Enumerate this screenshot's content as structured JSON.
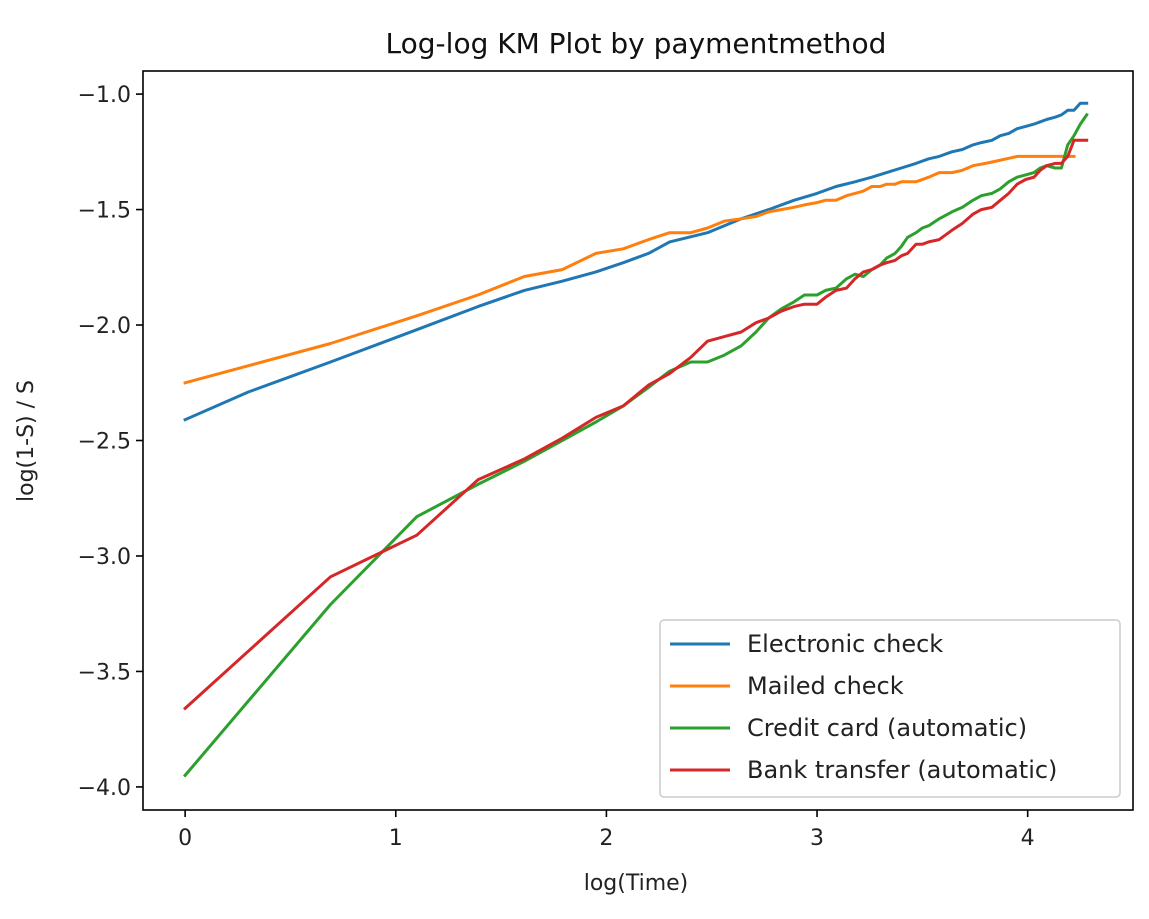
{
  "chart_data": {
    "type": "line",
    "title": "Log-log KM Plot by paymentmethod",
    "xlabel": "log(Time)",
    "ylabel": "log(1-S) / S",
    "xlim": [
      -0.2,
      4.5
    ],
    "ylim": [
      -4.1,
      -0.9
    ],
    "xticks": [
      0,
      1,
      2,
      3,
      4
    ],
    "xtick_labels": [
      "0",
      "1",
      "2",
      "3",
      "4"
    ],
    "yticks": [
      -1.0,
      -1.5,
      -2.0,
      -2.5,
      -3.0,
      -3.5,
      -4.0
    ],
    "ytick_labels": [
      "−1.0",
      "−1.5",
      "−2.0",
      "−2.5",
      "−3.0",
      "−3.5",
      "−4.0"
    ],
    "grid": false,
    "legend_position": "lower-right",
    "series": [
      {
        "name": "Electronic check",
        "color": "#1f77b4",
        "x": [
          0,
          0.3,
          0.69,
          1.1,
          1.39,
          1.61,
          1.79,
          1.95,
          2.08,
          2.2,
          2.3,
          2.48,
          2.64,
          2.77,
          2.89,
          3.0,
          3.09,
          3.18,
          3.26,
          3.33,
          3.4,
          3.47,
          3.53,
          3.58,
          3.64,
          3.69,
          3.74,
          3.78,
          3.83,
          3.87,
          3.91,
          3.95,
          3.99,
          4.03,
          4.06,
          4.09,
          4.13,
          4.16,
          4.19,
          4.22,
          4.25,
          4.28
        ],
        "y": [
          -2.41,
          -2.29,
          -2.16,
          -2.02,
          -1.92,
          -1.85,
          -1.81,
          -1.77,
          -1.73,
          -1.69,
          -1.64,
          -1.6,
          -1.54,
          -1.5,
          -1.46,
          -1.43,
          -1.4,
          -1.38,
          -1.36,
          -1.34,
          -1.32,
          -1.3,
          -1.28,
          -1.27,
          -1.25,
          -1.24,
          -1.22,
          -1.21,
          -1.2,
          -1.18,
          -1.17,
          -1.15,
          -1.14,
          -1.13,
          -1.12,
          -1.11,
          -1.1,
          -1.09,
          -1.07,
          -1.07,
          -1.04,
          -1.04
        ]
      },
      {
        "name": "Mailed check",
        "color": "#ff7f0e",
        "x": [
          0,
          0.69,
          1.1,
          1.39,
          1.61,
          1.79,
          1.95,
          2.08,
          2.2,
          2.3,
          2.4,
          2.48,
          2.56,
          2.64,
          2.71,
          2.77,
          2.83,
          2.89,
          2.94,
          3.0,
          3.04,
          3.09,
          3.14,
          3.18,
          3.22,
          3.26,
          3.3,
          3.33,
          3.37,
          3.4,
          3.47,
          3.53,
          3.58,
          3.64,
          3.69,
          3.74,
          3.8,
          3.85,
          3.9,
          3.95,
          4.0,
          4.06,
          4.13,
          4.2,
          4.22
        ],
        "y": [
          -2.25,
          -2.08,
          -1.96,
          -1.87,
          -1.79,
          -1.76,
          -1.69,
          -1.67,
          -1.63,
          -1.6,
          -1.6,
          -1.58,
          -1.55,
          -1.54,
          -1.53,
          -1.51,
          -1.5,
          -1.49,
          -1.48,
          -1.47,
          -1.46,
          -1.46,
          -1.44,
          -1.43,
          -1.42,
          -1.4,
          -1.4,
          -1.39,
          -1.39,
          -1.38,
          -1.38,
          -1.36,
          -1.34,
          -1.34,
          -1.33,
          -1.31,
          -1.3,
          -1.29,
          -1.28,
          -1.27,
          -1.27,
          -1.27,
          -1.27,
          -1.27,
          -1.27
        ]
      },
      {
        "name": "Credit card (automatic)",
        "color": "#2ca02c",
        "x": [
          0,
          0.69,
          1.1,
          1.39,
          1.61,
          1.79,
          1.95,
          2.08,
          2.2,
          2.3,
          2.4,
          2.48,
          2.56,
          2.64,
          2.71,
          2.77,
          2.83,
          2.89,
          2.94,
          3.0,
          3.04,
          3.09,
          3.14,
          3.18,
          3.22,
          3.26,
          3.3,
          3.33,
          3.37,
          3.4,
          3.43,
          3.47,
          3.5,
          3.53,
          3.58,
          3.64,
          3.69,
          3.74,
          3.78,
          3.83,
          3.87,
          3.91,
          3.95,
          3.99,
          4.03,
          4.06,
          4.09,
          4.13,
          4.16,
          4.19,
          4.22,
          4.25,
          4.28
        ],
        "y": [
          -3.95,
          -3.21,
          -2.83,
          -2.69,
          -2.59,
          -2.5,
          -2.42,
          -2.35,
          -2.27,
          -2.2,
          -2.16,
          -2.16,
          -2.13,
          -2.09,
          -2.03,
          -1.97,
          -1.93,
          -1.9,
          -1.87,
          -1.87,
          -1.85,
          -1.84,
          -1.8,
          -1.78,
          -1.79,
          -1.76,
          -1.74,
          -1.71,
          -1.69,
          -1.66,
          -1.62,
          -1.6,
          -1.58,
          -1.57,
          -1.54,
          -1.51,
          -1.49,
          -1.46,
          -1.44,
          -1.43,
          -1.41,
          -1.38,
          -1.36,
          -1.35,
          -1.34,
          -1.32,
          -1.31,
          -1.32,
          -1.32,
          -1.22,
          -1.18,
          -1.13,
          -1.09
        ]
      },
      {
        "name": "Bank transfer (automatic)",
        "color": "#d62728",
        "x": [
          0,
          0.69,
          1.1,
          1.39,
          1.61,
          1.79,
          1.95,
          2.08,
          2.2,
          2.3,
          2.4,
          2.48,
          2.56,
          2.64,
          2.71,
          2.77,
          2.83,
          2.89,
          2.94,
          3.0,
          3.04,
          3.09,
          3.14,
          3.18,
          3.22,
          3.26,
          3.3,
          3.33,
          3.37,
          3.4,
          3.43,
          3.47,
          3.5,
          3.53,
          3.58,
          3.64,
          3.69,
          3.74,
          3.78,
          3.83,
          3.87,
          3.91,
          3.95,
          3.99,
          4.03,
          4.06,
          4.09,
          4.13,
          4.16,
          4.19,
          4.22,
          4.25,
          4.28
        ],
        "y": [
          -3.66,
          -3.09,
          -2.91,
          -2.67,
          -2.58,
          -2.49,
          -2.4,
          -2.35,
          -2.26,
          -2.21,
          -2.14,
          -2.07,
          -2.05,
          -2.03,
          -1.99,
          -1.97,
          -1.94,
          -1.92,
          -1.91,
          -1.91,
          -1.88,
          -1.85,
          -1.84,
          -1.8,
          -1.77,
          -1.76,
          -1.74,
          -1.73,
          -1.72,
          -1.7,
          -1.69,
          -1.65,
          -1.65,
          -1.64,
          -1.63,
          -1.59,
          -1.56,
          -1.52,
          -1.5,
          -1.49,
          -1.46,
          -1.43,
          -1.39,
          -1.37,
          -1.36,
          -1.33,
          -1.31,
          -1.3,
          -1.3,
          -1.27,
          -1.2,
          -1.2,
          -1.2
        ]
      }
    ]
  }
}
